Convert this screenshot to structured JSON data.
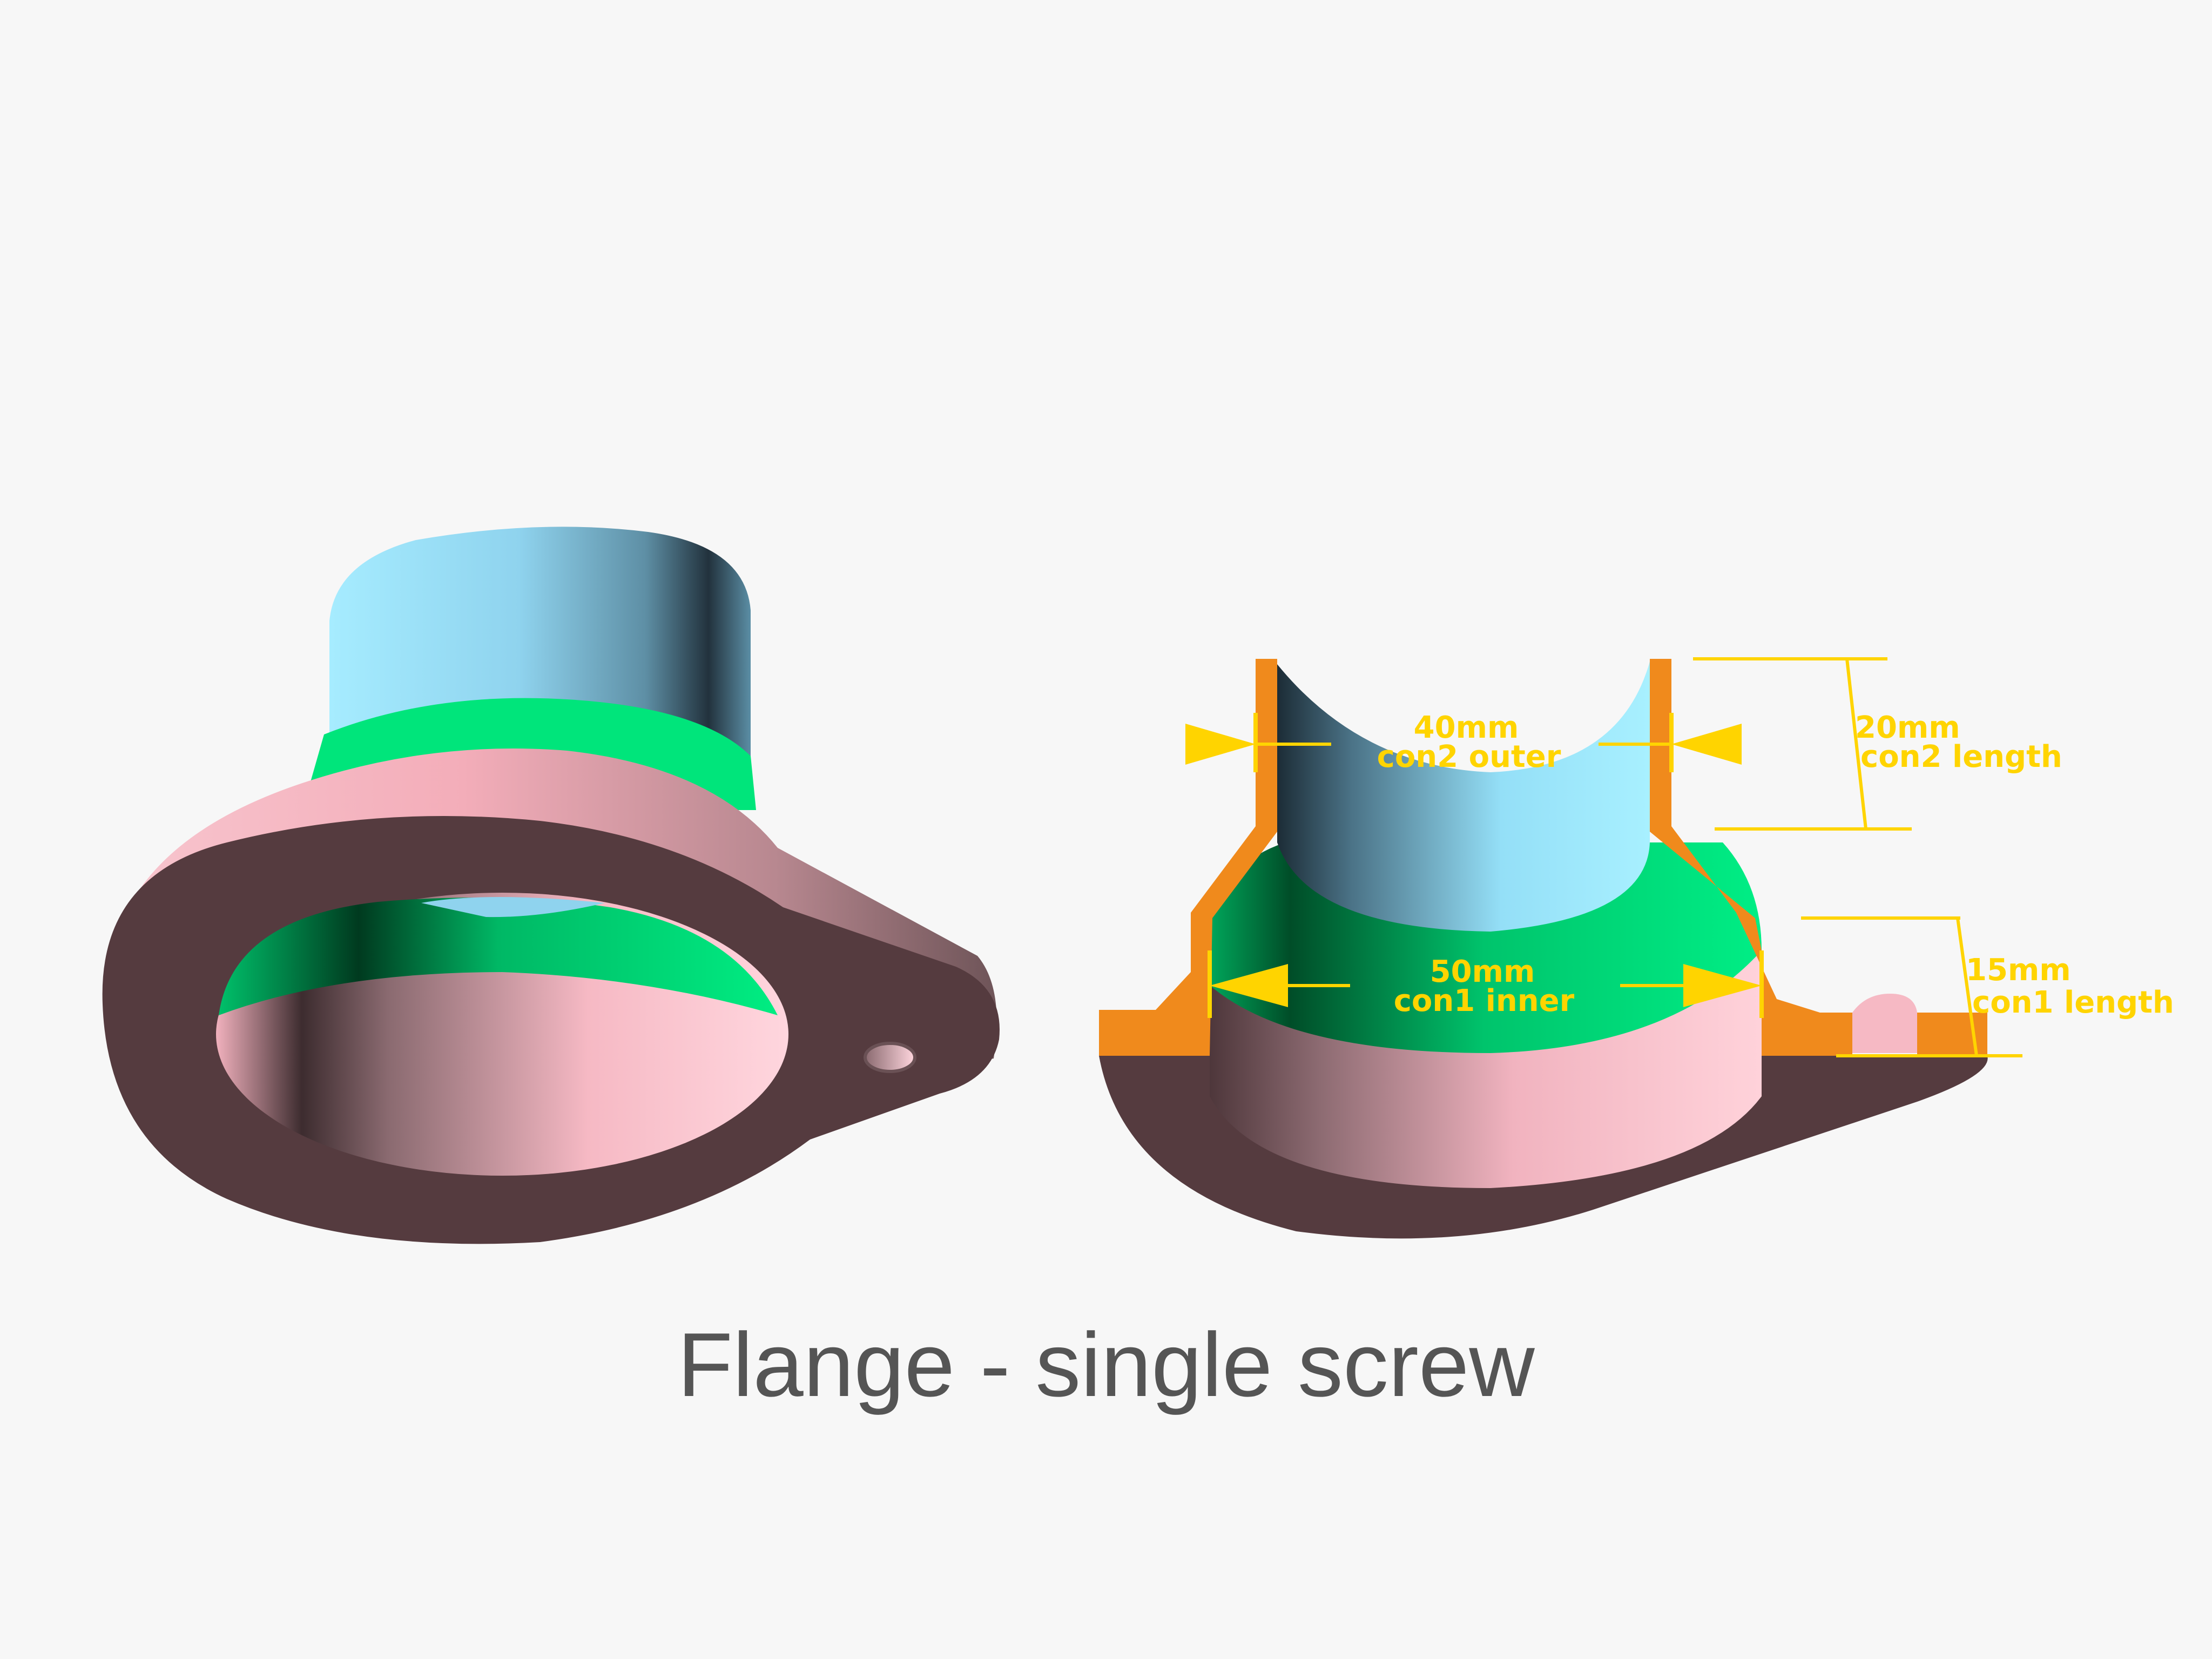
{
  "caption": "Flange - single screw",
  "dimensions": {
    "con2_outer": {
      "value": "40mm",
      "label": "con2 outer"
    },
    "con2_length": {
      "value": "20mm",
      "label": "con2 length"
    },
    "con1_inner": {
      "value": "50mm",
      "label": "con1 inner"
    },
    "con1_length": {
      "value": "15mm",
      "label": "con1 length"
    }
  },
  "colors": {
    "background": "#f7f7f7",
    "flange_top": "#553b3f",
    "pink_wall": "#f6b5c0",
    "green_cone": "#00e57b",
    "blue_tube": "#9fe8ff",
    "section_cut": "#f08a1c",
    "dimension": "#ffd400",
    "caption": "#555555"
  }
}
